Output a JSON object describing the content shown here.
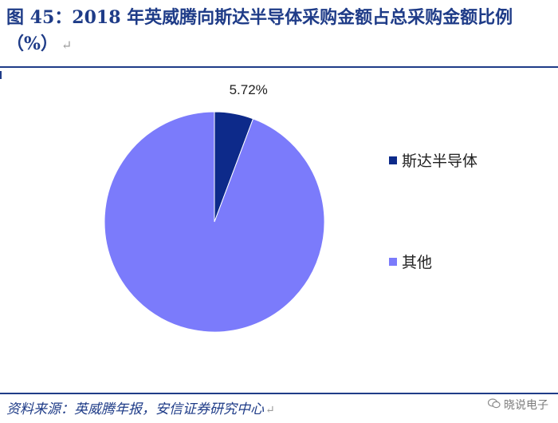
{
  "header": {
    "title": "图 45：2018 年英威腾向斯达半导体采购金额占总采购金额比例（%）",
    "return_glyph": "↵"
  },
  "footer": {
    "source": "资料来源：英威腾年报，安信证券研究中心",
    "return_glyph": "↵"
  },
  "watermark": "晓说电子",
  "chart_data": {
    "type": "pie",
    "title": "",
    "slices": [
      {
        "label": "斯达半导体",
        "value": 5.72,
        "value_label": "5.72%",
        "color": "#0d2a8a"
      },
      {
        "label": "其他",
        "value": 94.28,
        "color": "#7b7bfb"
      }
    ],
    "legend": "right",
    "start": "12 o'clock",
    "direction": "clockwise"
  },
  "colors": {
    "title": "#1f3c88",
    "rule": "#1f3c88",
    "slice_primary": "#0d2a8a",
    "slice_other": "#7b7bfb"
  }
}
